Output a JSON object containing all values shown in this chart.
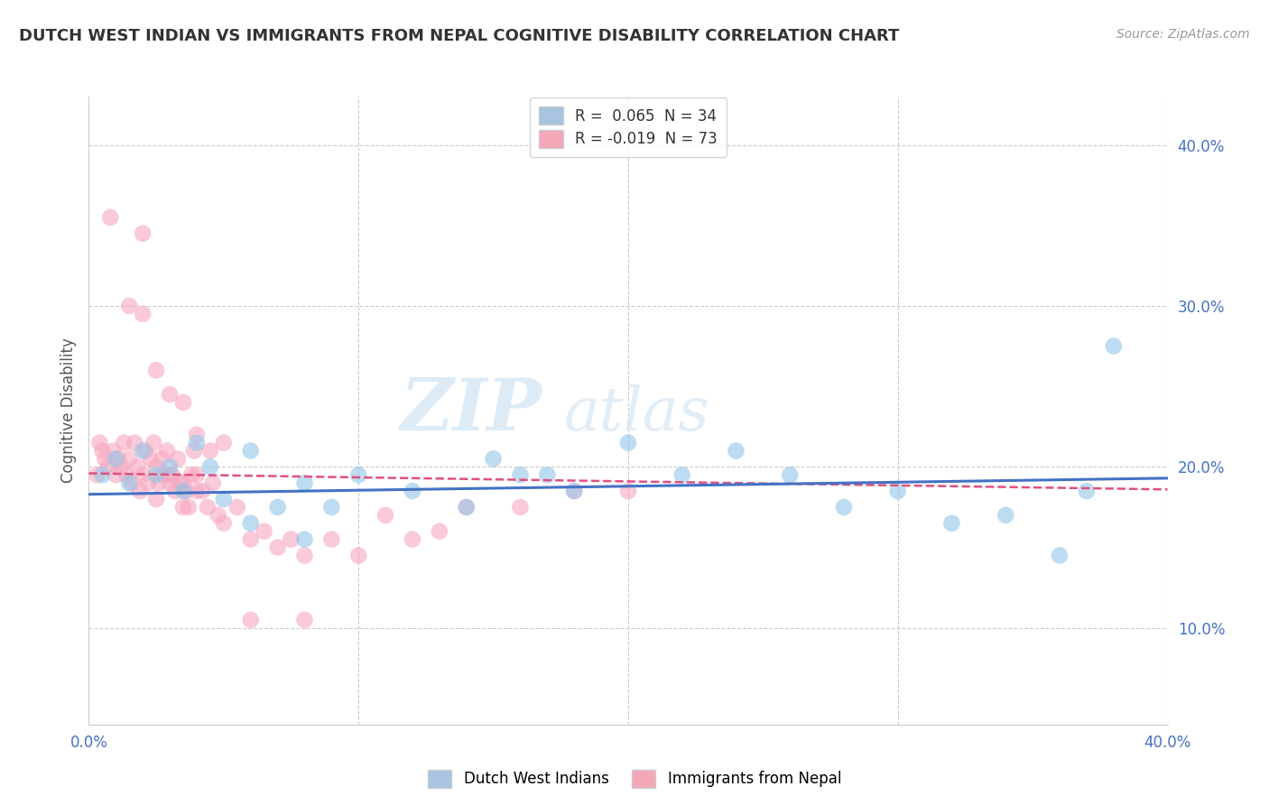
{
  "title": "DUTCH WEST INDIAN VS IMMIGRANTS FROM NEPAL COGNITIVE DISABILITY CORRELATION CHART",
  "source": "Source: ZipAtlas.com",
  "ylabel": "Cognitive Disability",
  "xlim": [
    0.0,
    0.4
  ],
  "ylim": [
    0.04,
    0.43
  ],
  "yticks": [
    0.1,
    0.2,
    0.3,
    0.4
  ],
  "ytick_labels": [
    "10.0%",
    "20.0%",
    "30.0%",
    "40.0%"
  ],
  "xticks": [
    0.0,
    0.1,
    0.2,
    0.3,
    0.4
  ],
  "legend1_label": "R =  0.065  N = 34",
  "legend2_label": "R = -0.019  N = 73",
  "legend1_color": "#a8c4e0",
  "legend2_color": "#f4a7b9",
  "color_blue": "#93c6e8",
  "color_pink": "#f7a8c0",
  "line_blue": "#4472c4",
  "line_pink": "#e05080",
  "watermark_zip": "ZIP",
  "watermark_atlas": "atlas",
  "background_color": "#ffffff",
  "grid_color": "#cccccc",
  "blue_scatter_x": [
    0.005,
    0.01,
    0.015,
    0.02,
    0.025,
    0.03,
    0.035,
    0.04,
    0.045,
    0.05,
    0.06,
    0.07,
    0.08,
    0.09,
    0.1,
    0.12,
    0.14,
    0.16,
    0.18,
    0.2,
    0.22,
    0.24,
    0.26,
    0.28,
    0.3,
    0.32,
    0.34,
    0.36,
    0.38,
    0.37,
    0.15,
    0.17,
    0.08,
    0.06
  ],
  "blue_scatter_y": [
    0.195,
    0.205,
    0.19,
    0.21,
    0.195,
    0.2,
    0.185,
    0.215,
    0.2,
    0.18,
    0.21,
    0.175,
    0.19,
    0.175,
    0.195,
    0.185,
    0.175,
    0.195,
    0.185,
    0.215,
    0.195,
    0.21,
    0.195,
    0.175,
    0.185,
    0.165,
    0.17,
    0.145,
    0.275,
    0.185,
    0.205,
    0.195,
    0.155,
    0.165
  ],
  "pink_scatter_x": [
    0.003,
    0.004,
    0.005,
    0.006,
    0.007,
    0.008,
    0.009,
    0.01,
    0.011,
    0.012,
    0.013,
    0.014,
    0.015,
    0.016,
    0.017,
    0.018,
    0.019,
    0.02,
    0.021,
    0.022,
    0.023,
    0.024,
    0.025,
    0.026,
    0.027,
    0.028,
    0.029,
    0.03,
    0.031,
    0.032,
    0.033,
    0.034,
    0.035,
    0.036,
    0.037,
    0.038,
    0.039,
    0.04,
    0.042,
    0.044,
    0.046,
    0.048,
    0.05,
    0.055,
    0.06,
    0.065,
    0.07,
    0.075,
    0.08,
    0.09,
    0.1,
    0.11,
    0.12,
    0.13,
    0.14,
    0.16,
    0.18,
    0.2,
    0.015,
    0.02,
    0.025,
    0.03,
    0.035,
    0.04,
    0.045,
    0.05,
    0.02,
    0.025,
    0.03,
    0.035,
    0.04,
    0.06,
    0.08
  ],
  "pink_scatter_y": [
    0.195,
    0.215,
    0.21,
    0.205,
    0.2,
    0.355,
    0.21,
    0.195,
    0.205,
    0.2,
    0.215,
    0.195,
    0.205,
    0.19,
    0.215,
    0.2,
    0.185,
    0.195,
    0.21,
    0.19,
    0.205,
    0.215,
    0.2,
    0.19,
    0.205,
    0.195,
    0.21,
    0.19,
    0.195,
    0.185,
    0.205,
    0.19,
    0.19,
    0.185,
    0.175,
    0.195,
    0.21,
    0.195,
    0.185,
    0.175,
    0.19,
    0.17,
    0.165,
    0.175,
    0.155,
    0.16,
    0.15,
    0.155,
    0.145,
    0.155,
    0.145,
    0.17,
    0.155,
    0.16,
    0.175,
    0.175,
    0.185,
    0.185,
    0.3,
    0.295,
    0.26,
    0.245,
    0.24,
    0.22,
    0.21,
    0.215,
    0.345,
    0.18,
    0.195,
    0.175,
    0.185,
    0.105,
    0.105
  ]
}
